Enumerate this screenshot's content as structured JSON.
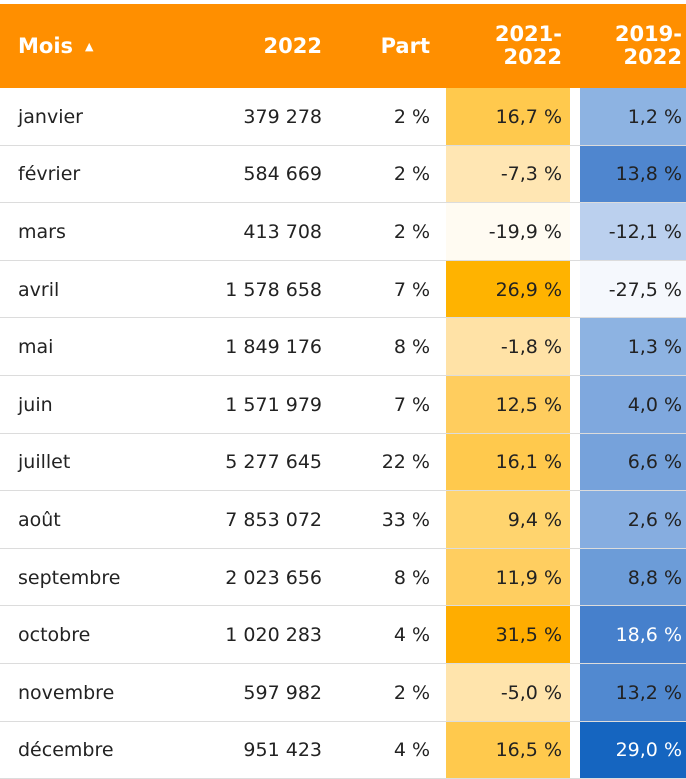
{
  "table": {
    "headers": [
      "Mois",
      "2022",
      "Part",
      "2021-\n2022",
      "2019-\n2022"
    ],
    "rows": [
      [
        "janvier",
        "379 278",
        "2 %",
        "16,7 %",
        "1,2 %"
      ],
      [
        "février",
        "584 669",
        "2 %",
        "-7,3 %",
        "13,8 %"
      ],
      [
        "mars",
        "413 708",
        "2 %",
        "-19,9 %",
        "-12,1 %"
      ],
      [
        "avril",
        "1 578 658",
        "7 %",
        "26,9 %",
        "-27,5 %"
      ],
      [
        "mai",
        "1 849 176",
        "8 %",
        "-1,8 %",
        "1,3 %"
      ],
      [
        "juin",
        "1 571 979",
        "7 %",
        "12,5 %",
        "4,0 %"
      ],
      [
        "juillet",
        "5 277 645",
        "22 %",
        "16,1 %",
        "6,6 %"
      ],
      [
        "août",
        "7 853 072",
        "33 %",
        "9,4 %",
        "2,6 %"
      ],
      [
        "septembre",
        "2 023 656",
        "8 %",
        "11,9 %",
        "8,8 %"
      ],
      [
        "octobre",
        "1 020 283",
        "4 %",
        "31,5 %",
        "18,6 %"
      ],
      [
        "novembre",
        "597 982",
        "2 %",
        "-5,0 %",
        "13,2 %"
      ],
      [
        "décembre",
        "951 423",
        "4 %",
        "16,5 %",
        "29,0 %"
      ]
    ],
    "cell_colors": [
      [
        "#ffc94d",
        "#8db3e2"
      ],
      [
        "#ffe6b3",
        "#4f86cf"
      ],
      [
        "#fffbf2",
        "#bbd0ee"
      ],
      [
        "#ffb300",
        "#f5f8fd"
      ],
      [
        "#ffe2a6",
        "#8db3e2"
      ],
      [
        "#ffcd5e",
        "#7fa8de"
      ],
      [
        "#ffc94d",
        "#76a2db"
      ],
      [
        "#ffd46e",
        "#86ade0"
      ],
      [
        "#ffce60",
        "#6c9cd8"
      ],
      [
        "#ffad00",
        "#4680cc"
      ],
      [
        "#ffe4ac",
        "#5189d0"
      ],
      [
        "#ffc94d",
        "#1565c0"
      ]
    ],
    "header_color": "#ff8f00"
  }
}
